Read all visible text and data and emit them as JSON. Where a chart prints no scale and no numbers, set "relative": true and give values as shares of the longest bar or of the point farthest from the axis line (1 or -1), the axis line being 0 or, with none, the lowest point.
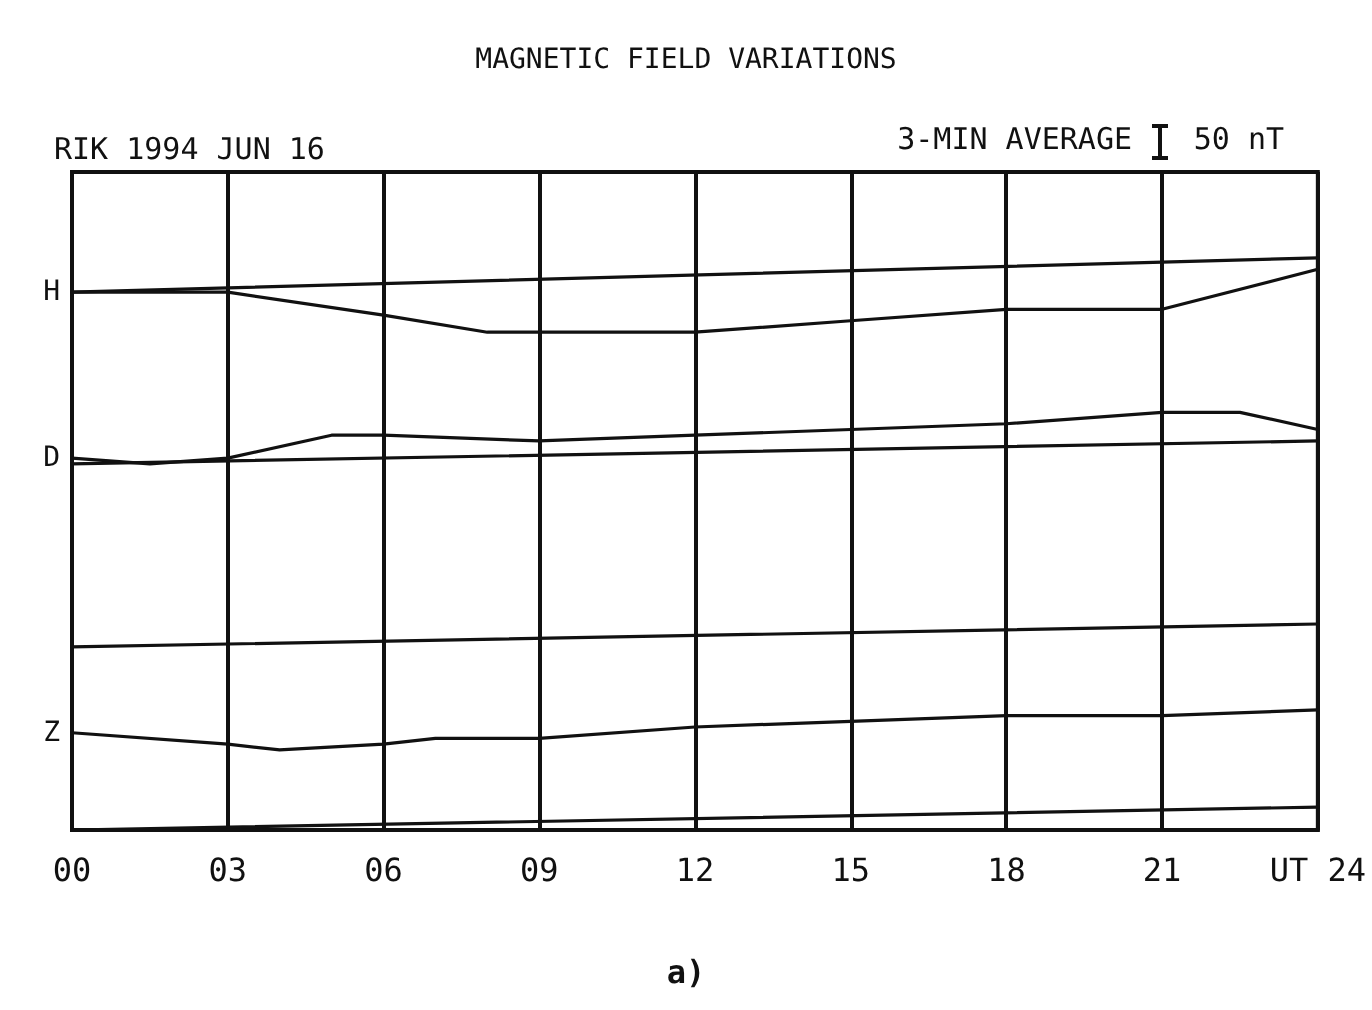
{
  "chart_data": {
    "type": "line",
    "title": "MAGNETIC FIELD VARIATIONS",
    "subtitle": "RIK 1994 JUN 16",
    "annotations": [
      "3-MIN AVERAGE",
      "50 nT",
      "a)"
    ],
    "relative": true,
    "xlim": [
      0,
      24
    ],
    "xticks": [
      {
        "value": 0,
        "label": "00"
      },
      {
        "value": 3,
        "label": "03"
      },
      {
        "value": 6,
        "label": "06"
      },
      {
        "value": 9,
        "label": "09"
      },
      {
        "value": 12,
        "label": "12"
      },
      {
        "value": 15,
        "label": "15"
      },
      {
        "value": 18,
        "label": "18"
      },
      {
        "value": 21,
        "label": "21"
      },
      {
        "value": 24,
        "label": "UT 24"
      }
    ],
    "grid": "x",
    "legend": false,
    "marker": "none",
    "line_style": "solid",
    "series": [
      {
        "color": "#111111",
        "x": [
          0,
          24
        ],
        "values": [
          0.94,
          1.0
        ]
      },
      {
        "name": "H",
        "color": "#111111",
        "x": [
          0,
          3,
          6,
          8,
          9,
          12,
          15,
          18,
          21,
          24
        ],
        "values": [
          0.94,
          0.94,
          0.9,
          0.87,
          0.87,
          0.87,
          0.89,
          0.91,
          0.91,
          0.98
        ]
      },
      {
        "color": "#111111",
        "x": [
          0,
          24
        ],
        "values": [
          0.64,
          0.68
        ]
      },
      {
        "name": "D",
        "color": "#111111",
        "x": [
          0,
          1.5,
          3,
          5,
          6,
          9,
          12,
          15,
          18,
          21,
          22.5,
          24
        ],
        "values": [
          0.65,
          0.64,
          0.65,
          0.69,
          0.69,
          0.68,
          0.69,
          0.7,
          0.71,
          0.73,
          0.73,
          0.7
        ]
      },
      {
        "color": "#111111",
        "x": [
          0,
          24
        ],
        "values": [
          0.32,
          0.36
        ]
      },
      {
        "name": "Z",
        "color": "#111111",
        "x": [
          0,
          3,
          4,
          6,
          7,
          9,
          12,
          15,
          18,
          21,
          24
        ],
        "values": [
          0.17,
          0.15,
          0.14,
          0.15,
          0.16,
          0.16,
          0.18,
          0.19,
          0.2,
          0.2,
          0.21
        ]
      },
      {
        "color": "#111111",
        "x": [
          0,
          24
        ],
        "values": [
          0.0,
          0.04
        ]
      }
    ]
  }
}
